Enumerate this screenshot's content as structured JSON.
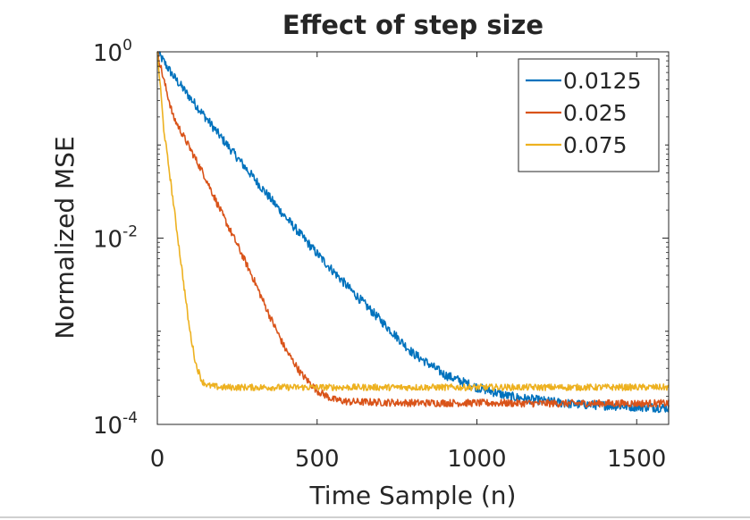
{
  "chart_data": {
    "type": "line",
    "title": "Effect of step size",
    "xlabel": "Time Sample (n)",
    "ylabel": "Normalized MSE",
    "xlim": [
      0,
      1600
    ],
    "ylim": [
      0.0001,
      1
    ],
    "yscale": "log",
    "grid": false,
    "legend_position": "top-right",
    "x_ticks": [
      0,
      500,
      1000,
      1500
    ],
    "x_tick_labels": [
      "0",
      "500",
      "1000",
      "1500"
    ],
    "y_ticks": [
      {
        "value": 1,
        "base": "10",
        "exp": "0"
      },
      {
        "value": 0.01,
        "base": "10",
        "exp": "-2"
      },
      {
        "value": 0.0001,
        "base": "10",
        "exp": "-4"
      }
    ],
    "series": [
      {
        "name": "0.0125",
        "color": "#0072BD",
        "noise_log10": 0.05,
        "points": [
          [
            0,
            1
          ],
          [
            50,
            0.55
          ],
          [
            100,
            0.33
          ],
          [
            150,
            0.2
          ],
          [
            200,
            0.12
          ],
          [
            300,
            0.045
          ],
          [
            400,
            0.017
          ],
          [
            500,
            0.0068
          ],
          [
            600,
            0.0029
          ],
          [
            700,
            0.0013
          ],
          [
            800,
            0.00058
          ],
          [
            900,
            0.00034
          ],
          [
            1000,
            0.00025
          ],
          [
            1100,
            0.0002
          ],
          [
            1200,
            0.00018
          ],
          [
            1300,
            0.000165
          ],
          [
            1400,
            0.00016
          ],
          [
            1500,
            0.000155
          ],
          [
            1600,
            0.00015
          ]
        ]
      },
      {
        "name": "0.025",
        "color": "#D95319",
        "noise_log10": 0.04,
        "points": [
          [
            0,
            1
          ],
          [
            20,
            0.5
          ],
          [
            50,
            0.2
          ],
          [
            100,
            0.095
          ],
          [
            150,
            0.045
          ],
          [
            200,
            0.019
          ],
          [
            250,
            0.0085
          ],
          [
            300,
            0.0037
          ],
          [
            350,
            0.0015
          ],
          [
            400,
            0.00065
          ],
          [
            450,
            0.00035
          ],
          [
            500,
            0.00023
          ],
          [
            550,
            0.000185
          ],
          [
            600,
            0.000175
          ],
          [
            800,
            0.00017
          ],
          [
            1000,
            0.00017
          ],
          [
            1200,
            0.000168
          ],
          [
            1400,
            0.000168
          ],
          [
            1600,
            0.000168
          ]
        ]
      },
      {
        "name": "0.075",
        "color": "#EDB120",
        "noise_log10": 0.035,
        "points": [
          [
            0,
            1
          ],
          [
            10,
            0.4
          ],
          [
            20,
            0.15
          ],
          [
            40,
            0.045
          ],
          [
            60,
            0.013
          ],
          [
            80,
            0.0038
          ],
          [
            100,
            0.0011
          ],
          [
            120,
            0.00045
          ],
          [
            140,
            0.00029
          ],
          [
            160,
            0.00026
          ],
          [
            200,
            0.00025
          ],
          [
            400,
            0.00025
          ],
          [
            600,
            0.00025
          ],
          [
            800,
            0.00025
          ],
          [
            1000,
            0.00025
          ],
          [
            1200,
            0.00025
          ],
          [
            1400,
            0.00025
          ],
          [
            1600,
            0.00025
          ]
        ]
      }
    ]
  }
}
